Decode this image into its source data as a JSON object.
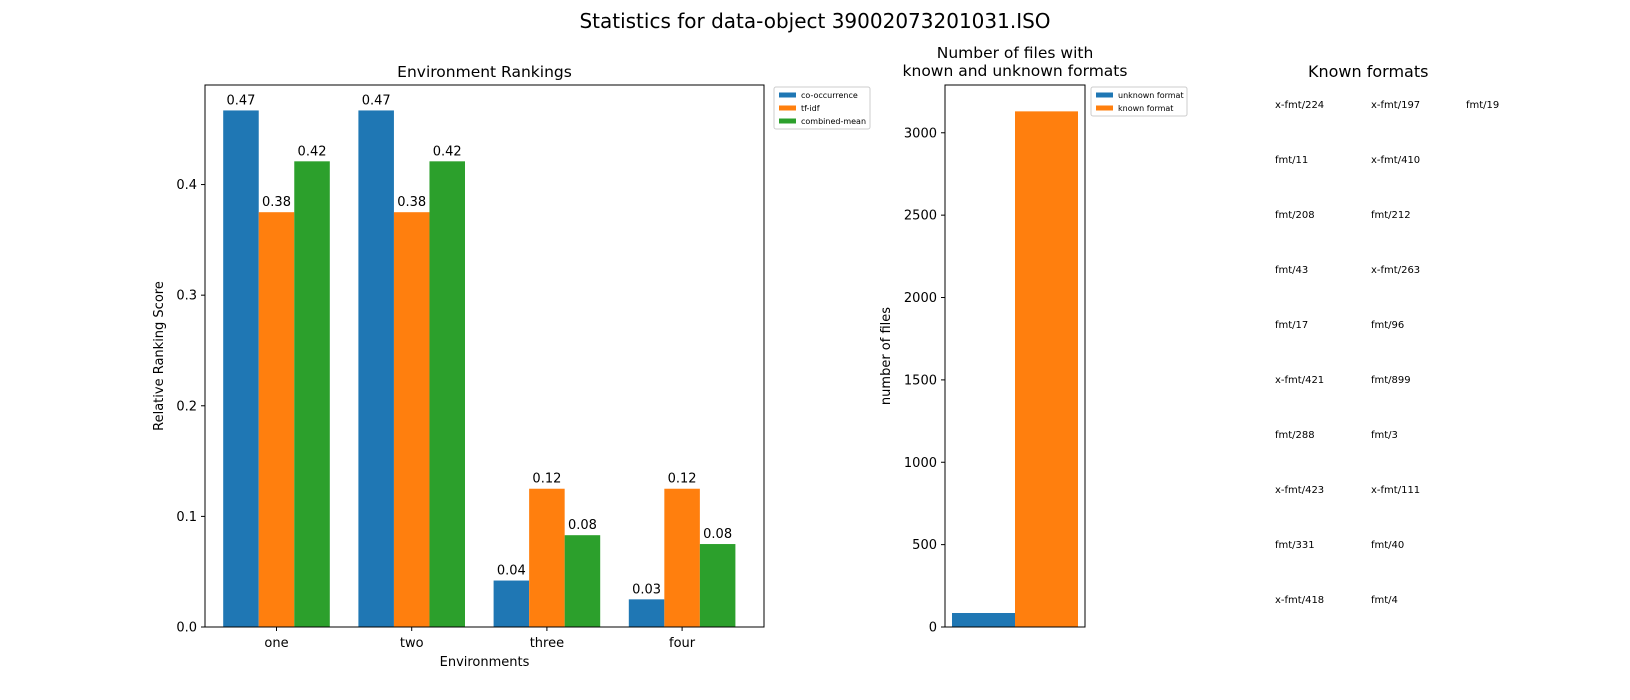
{
  "figure_title": "Statistics for data-object 39002073201031.ISO",
  "chart_data": [
    {
      "type": "bar",
      "title": "Environment Rankings",
      "xlabel": "Environments",
      "ylabel": "Relative Ranking Score",
      "categories": [
        "one",
        "two",
        "three",
        "four"
      ],
      "ylim": [
        0,
        0.49
      ],
      "yticks": [
        "0.0",
        "0.1",
        "0.2",
        "0.3",
        "0.4"
      ],
      "legend_position": "outside-upper-right",
      "series": [
        {
          "name": "co-occurrence",
          "color": "#1f77b4",
          "values": [
            0.467,
            0.467,
            0.042,
            0.025
          ],
          "labels": [
            "0.47",
            "0.47",
            "0.04",
            "0.03"
          ]
        },
        {
          "name": "tf-idf",
          "color": "#ff7f0e",
          "values": [
            0.375,
            0.375,
            0.125,
            0.125
          ],
          "labels": [
            "0.38",
            "0.38",
            "0.12",
            "0.12"
          ]
        },
        {
          "name": "combined-mean",
          "color": "#2ca02c",
          "values": [
            0.421,
            0.421,
            0.083,
            0.075
          ],
          "labels": [
            "0.42",
            "0.42",
            "0.08",
            "0.08"
          ]
        }
      ]
    },
    {
      "type": "bar",
      "title": "Number of files with\nknown and unknown formats",
      "ylabel": "number of files",
      "ylim": [
        0,
        3290
      ],
      "yticks": [
        "0",
        "500",
        "1000",
        "1500",
        "2000",
        "2500",
        "3000"
      ],
      "legend_position": "outside-upper-right",
      "series": [
        {
          "name": "unknown format",
          "color": "#1f77b4",
          "values": [
            85
          ]
        },
        {
          "name": "known format",
          "color": "#ff7f0e",
          "values": [
            3130
          ]
        }
      ]
    }
  ],
  "known_formats": {
    "title": "Known formats",
    "columns": [
      [
        "x-fmt/224",
        "fmt/11",
        "fmt/208",
        "fmt/43",
        "fmt/17",
        "x-fmt/421",
        "fmt/288",
        "x-fmt/423",
        "fmt/331",
        "x-fmt/418"
      ],
      [
        "x-fmt/197",
        "x-fmt/410",
        "fmt/212",
        "x-fmt/263",
        "fmt/96",
        "fmt/899",
        "fmt/3",
        "x-fmt/111",
        "fmt/40",
        "fmt/4"
      ],
      [
        "fmt/19"
      ]
    ]
  }
}
